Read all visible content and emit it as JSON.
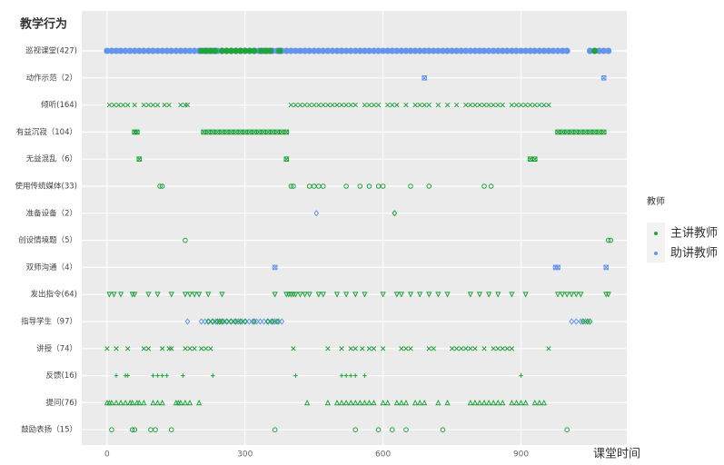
{
  "chart_data": {
    "type": "strip",
    "y_title": "教学行为",
    "x_title": "课堂时间",
    "legend_title": "教师",
    "categories": [
      "巡视课堂(427)",
      "动作示范（2）",
      "倾听(164)",
      "有益沉寂（104）",
      "无益混乱（6）",
      "使用传统媒体(33)",
      "准备设备（2）",
      "创设情境题（5）",
      "双师沟通（4）",
      "发出指令(64)",
      "指导学生（97）",
      "讲授（74）",
      "反馈(16)",
      "提问(76)",
      "鼓励表扬（15）"
    ],
    "markers": [
      "circle",
      "square-x",
      "x",
      "square-x",
      "square-x",
      "circle",
      "diamond",
      "circle",
      "square-x",
      "triangle-down",
      "diamond",
      "x",
      "plus",
      "triangle",
      "circle"
    ],
    "xlim": [
      -55,
      1130
    ],
    "xticks": [
      0,
      300,
      600,
      900
    ],
    "grid": true,
    "series": [
      {
        "name": "助讲教师",
        "color": "#6495ed",
        "values": [
          [
            0,
            10,
            20,
            30,
            40,
            50,
            60,
            70,
            80,
            90,
            100,
            110,
            120,
            130,
            140,
            150,
            160,
            170,
            180,
            190,
            200,
            210,
            220,
            230,
            240,
            250,
            260,
            270,
            280,
            290,
            300,
            310,
            320,
            330,
            340,
            350,
            360,
            370,
            380,
            390,
            400,
            410,
            420,
            430,
            440,
            450,
            460,
            470,
            480,
            490,
            500,
            510,
            520,
            530,
            540,
            550,
            560,
            570,
            580,
            590,
            600,
            610,
            620,
            630,
            640,
            650,
            660,
            670,
            680,
            690,
            700,
            710,
            720,
            730,
            740,
            750,
            760,
            770,
            780,
            790,
            800,
            810,
            820,
            830,
            840,
            850,
            860,
            870,
            880,
            890,
            900,
            910,
            920,
            930,
            940,
            950,
            960,
            970,
            980,
            990,
            1000,
            1050,
            1060,
            1070,
            1080,
            1090
          ],
          [
            690,
            1080
          ],
          [],
          [],
          [],
          [],
          [
            455
          ],
          [],
          [
            365,
            975,
            980,
            1085
          ],
          [],
          [
            175,
            205,
            213,
            221,
            229,
            237,
            245,
            253,
            261,
            269,
            277,
            285,
            293,
            301,
            309,
            317,
            325,
            333,
            341,
            349,
            357,
            365,
            373,
            380,
            1010,
            1020,
            1030,
            1040
          ],
          [],
          [],
          [],
          []
        ]
      },
      {
        "name": "主讲教师",
        "color": "#1fa33a",
        "values": [
          [
            205,
            215,
            225,
            235,
            250,
            260,
            270,
            280,
            290,
            300,
            310,
            320,
            335,
            345,
            355,
            375,
            1060
          ],
          [],
          [
            5,
            15,
            25,
            35,
            45,
            60,
            80,
            90,
            100,
            110,
            125,
            135,
            160,
            170,
            175,
            400,
            410,
            420,
            430,
            440,
            450,
            460,
            470,
            480,
            490,
            500,
            510,
            520,
            530,
            540,
            560,
            570,
            580,
            590,
            610,
            620,
            630,
            650,
            670,
            680,
            690,
            700,
            720,
            740,
            760,
            780,
            790,
            800,
            810,
            820,
            830,
            840,
            850,
            860,
            880,
            890,
            900,
            910,
            920,
            930,
            940,
            950,
            960
          ],
          [
            60,
            65,
            210,
            220,
            230,
            240,
            250,
            260,
            270,
            280,
            290,
            300,
            310,
            320,
            330,
            340,
            350,
            360,
            370,
            380,
            390,
            980,
            990,
            1000,
            1010,
            1020,
            1030,
            1040,
            1050,
            1060,
            1070,
            1080
          ],
          [
            70,
            390,
            920,
            930
          ],
          [
            115,
            120,
            400,
            405,
            440,
            450,
            460,
            470,
            520,
            550,
            570,
            590,
            600,
            660,
            700,
            820,
            835
          ],
          [
            625
          ],
          [
            170,
            1090,
            1095
          ],
          [],
          [
            5,
            15,
            30,
            55,
            60,
            90,
            110,
            140,
            170,
            180,
            190,
            200,
            220,
            250,
            365,
            390,
            395,
            400,
            405,
            410,
            420,
            430,
            440,
            460,
            470,
            500,
            520,
            540,
            560,
            600,
            630,
            640,
            660,
            680,
            700,
            720,
            740,
            790,
            810,
            830,
            850,
            880,
            910,
            980,
            990,
            1000,
            1010,
            1020,
            1030,
            1085,
            1090
          ],
          [
            220,
            230,
            240,
            245,
            250,
            260,
            270,
            280,
            290,
            300,
            320,
            350,
            360,
            370,
            1035,
            1045,
            1050
          ],
          [
            0,
            20,
            45,
            80,
            90,
            120,
            135,
            140,
            170,
            180,
            190,
            205,
            215,
            225,
            405,
            480,
            510,
            530,
            540,
            555,
            570,
            580,
            600,
            640,
            650,
            660,
            700,
            710,
            750,
            760,
            770,
            780,
            790,
            800,
            820,
            840,
            850,
            860,
            870,
            880,
            960
          ],
          [
            20,
            40,
            45,
            100,
            110,
            120,
            130,
            165,
            230,
            410,
            510,
            520,
            530,
            540,
            560,
            900
          ],
          [
            0,
            5,
            10,
            20,
            30,
            40,
            50,
            55,
            65,
            70,
            80,
            100,
            110,
            120,
            150,
            155,
            160,
            170,
            180,
            200,
            435,
            480,
            500,
            510,
            520,
            530,
            540,
            550,
            560,
            570,
            580,
            600,
            610,
            630,
            640,
            650,
            670,
            680,
            690,
            720,
            740,
            790,
            800,
            810,
            820,
            830,
            840,
            850,
            860,
            880,
            890,
            900,
            910,
            930,
            940,
            950
          ],
          [
            10,
            55,
            60,
            95,
            105,
            140,
            365,
            540,
            590,
            620,
            650,
            730,
            1000
          ]
        ]
      }
    ]
  }
}
